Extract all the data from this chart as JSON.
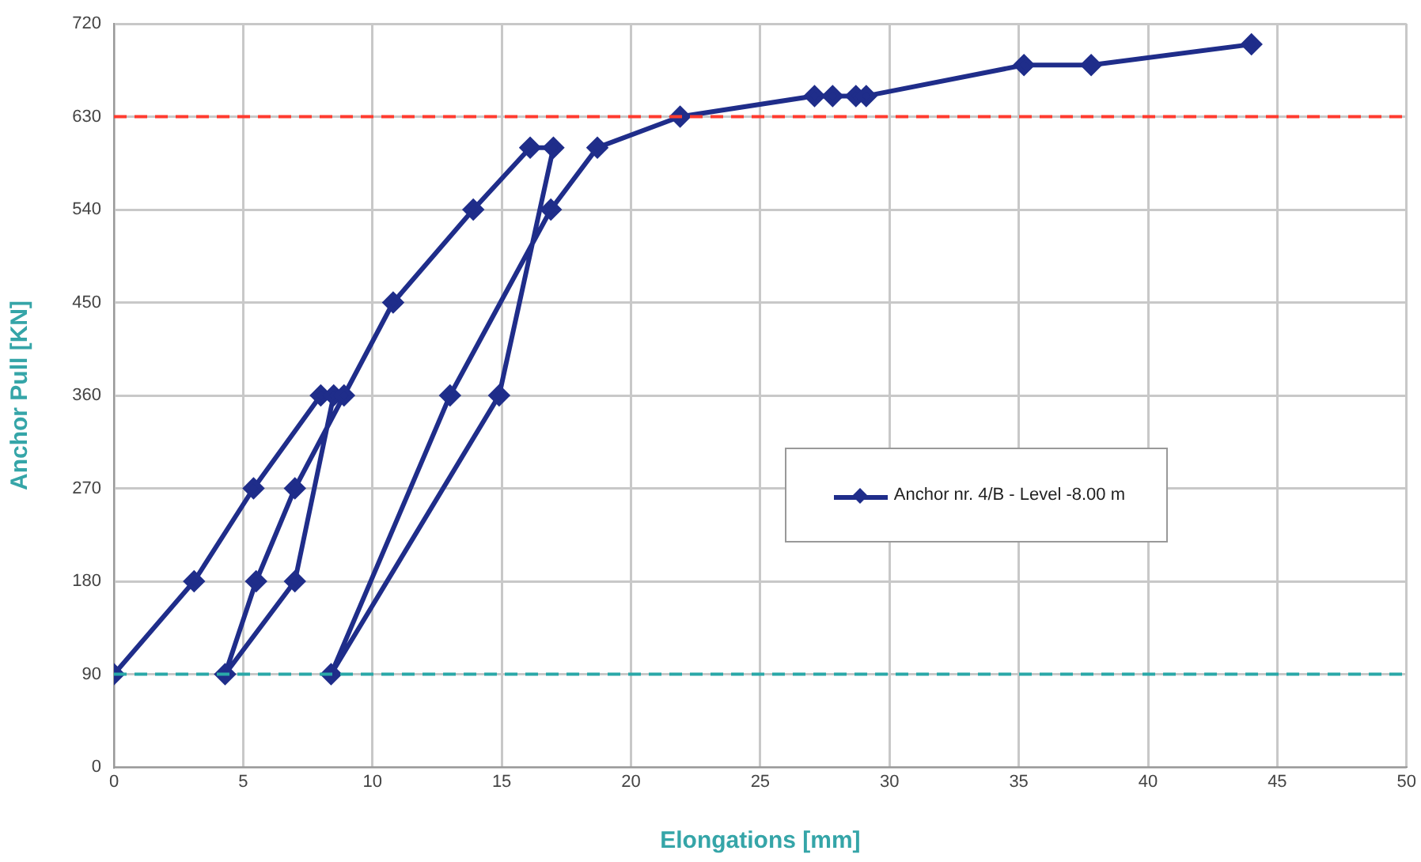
{
  "chart_data": {
    "type": "line",
    "xlabel": "Elongations [mm]",
    "ylabel": "Anchor Pull [KN]",
    "xlim": [
      0,
      50
    ],
    "xticks": [
      0,
      5,
      10,
      15,
      20,
      25,
      30,
      35,
      40,
      45,
      50
    ],
    "ylim": [
      0,
      720
    ],
    "yticks": [
      0,
      90,
      180,
      270,
      360,
      450,
      540,
      630,
      720
    ],
    "grid": true,
    "legend": "right",
    "marker": "diamond",
    "line_style": "solid",
    "series": [
      {
        "name": "Anchor nr. 4/B  - Level  -8.00 m",
        "color": "#1f2d8a",
        "x": [
          0,
          3.1,
          5.4,
          8.0,
          8.5,
          7.0,
          4.3,
          5.5,
          7.0,
          8.9,
          10.8,
          13.9,
          16.1,
          17.0,
          14.9,
          8.4,
          13.0,
          16.9,
          18.7,
          21.9,
          27.1,
          27.8,
          28.7,
          29.1,
          35.2,
          37.8,
          44.0
        ],
        "values": [
          90,
          180,
          270,
          360,
          360,
          180,
          90,
          180,
          270,
          360,
          450,
          540,
          600,
          600,
          360,
          90,
          360,
          540,
          600,
          630,
          650,
          650,
          650,
          650,
          680,
          680,
          700
        ]
      }
    ],
    "ref_lines": [
      {
        "axis": "y",
        "value": 630,
        "color": "#ff3b2f",
        "line_style": "dashed"
      },
      {
        "axis": "y",
        "value": 90,
        "color": "#2aa8a8",
        "line_style": "dashed"
      }
    ]
  }
}
